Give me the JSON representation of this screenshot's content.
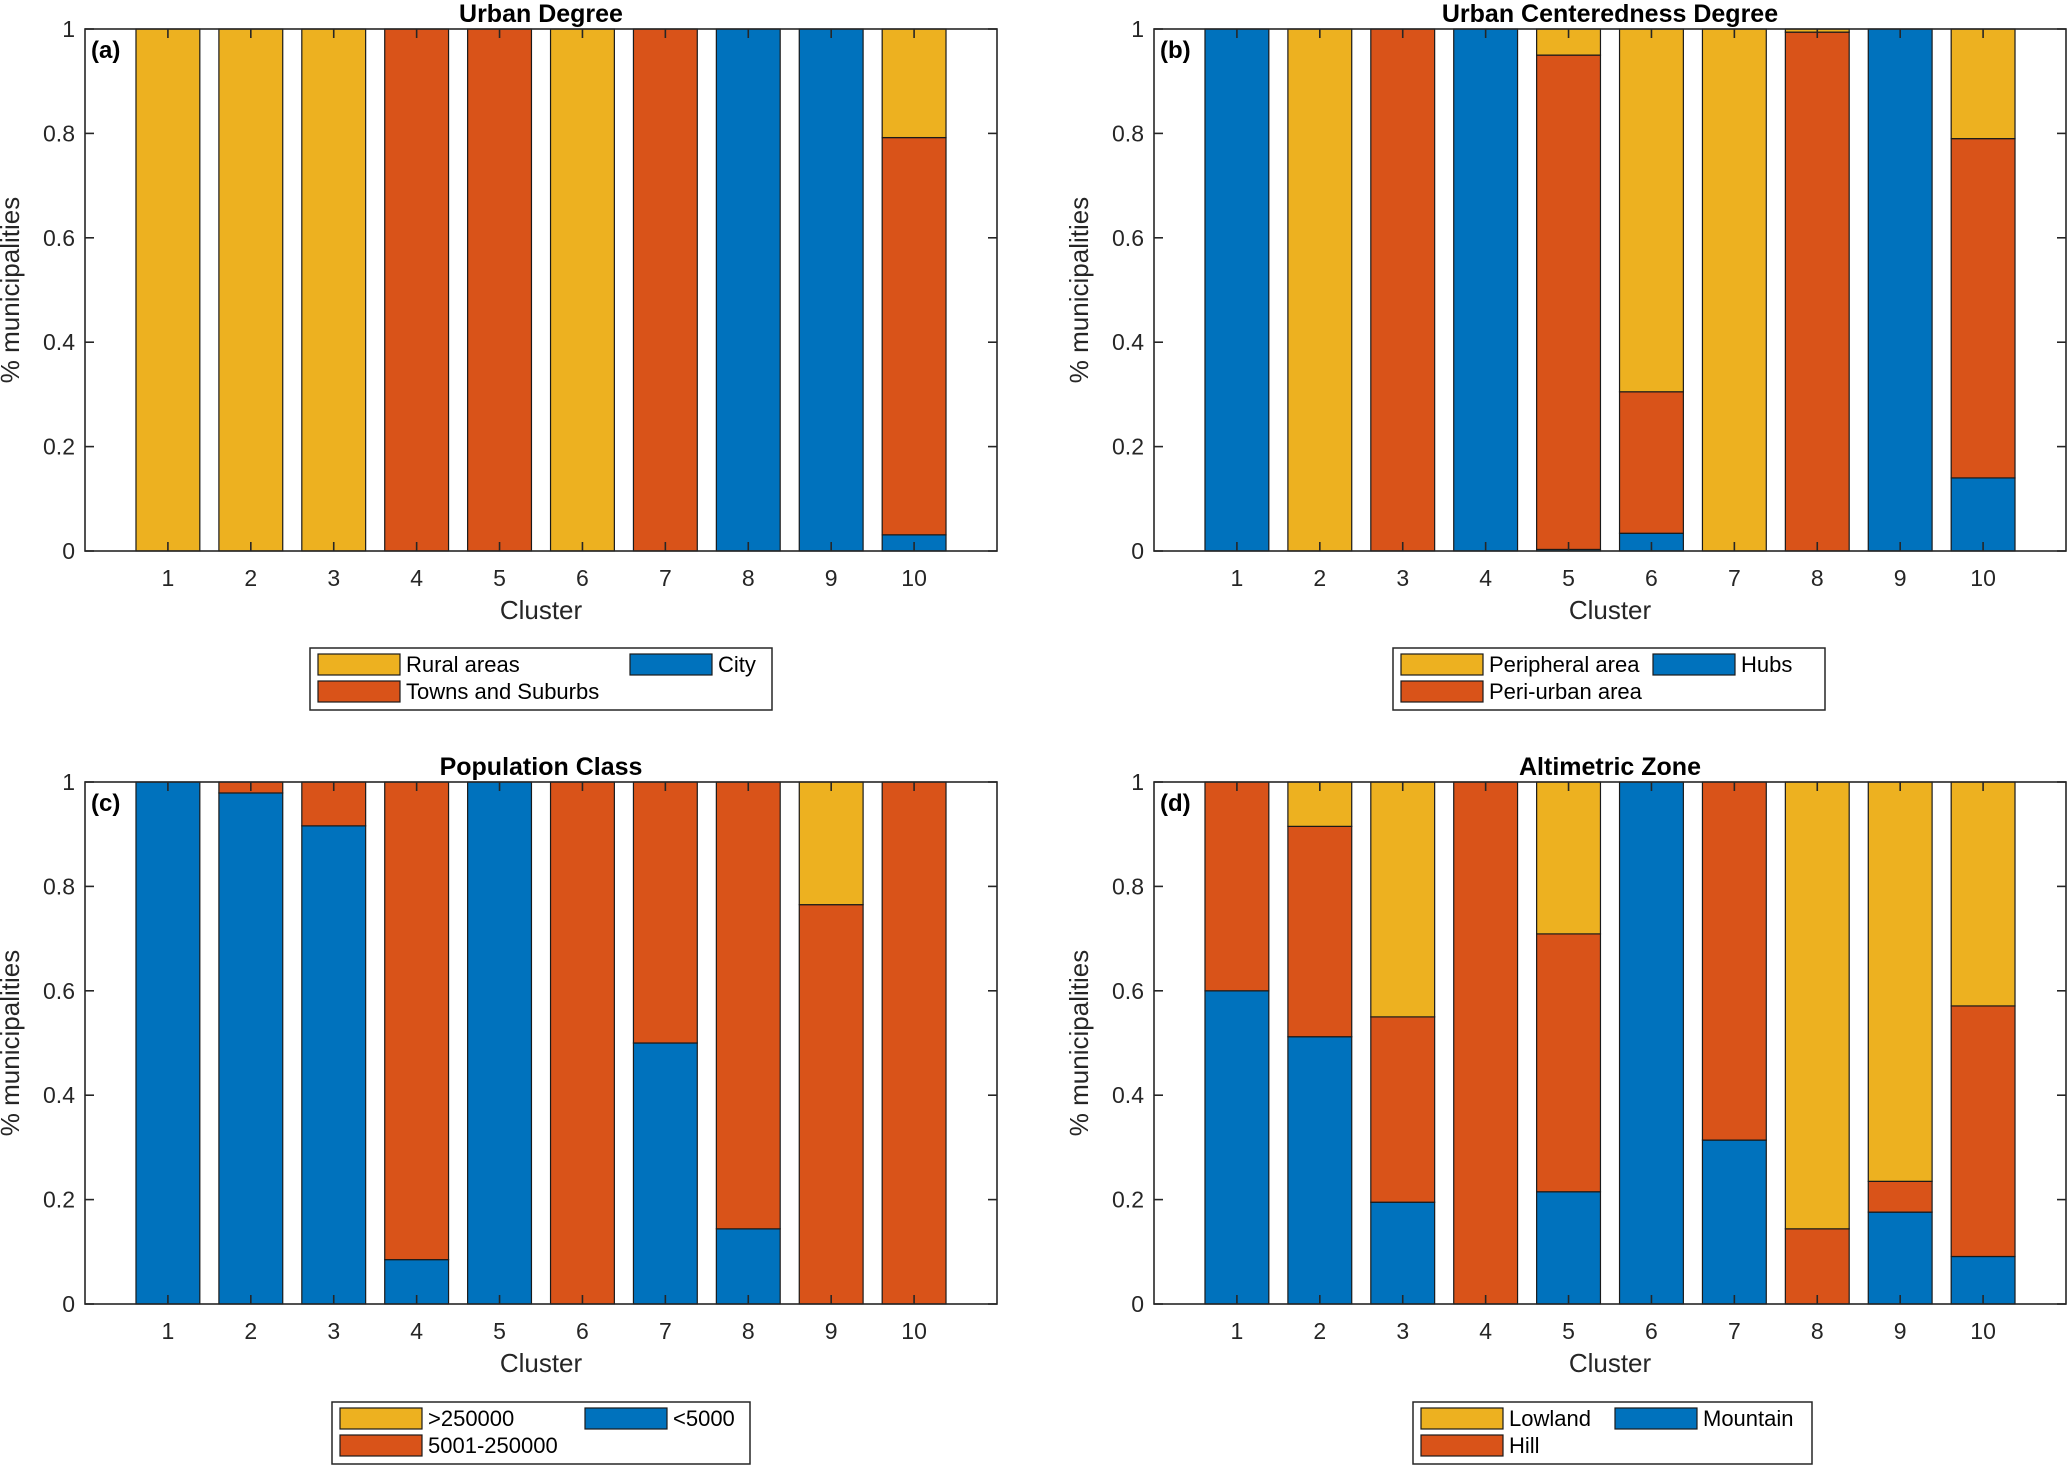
{
  "colors": {
    "yellow": "#EDB120",
    "orange": "#D95319",
    "blue": "#0072BD"
  },
  "chart_data": [
    {
      "id": "a",
      "type": "bar",
      "stacked": true,
      "panel_label": "(a)",
      "title": "Urban Degree",
      "xlabel": "Cluster",
      "ylabel": "% municipalities",
      "categories": [
        "1",
        "2",
        "3",
        "4",
        "5",
        "6",
        "7",
        "8",
        "9",
        "10"
      ],
      "xlim": [
        0,
        11
      ],
      "ylim": [
        0,
        1
      ],
      "yticks": [
        0,
        0.2,
        0.4,
        0.6,
        0.8,
        1
      ],
      "ytick_labels": [
        "0",
        "0.2",
        "0.4",
        "0.6",
        "0.8",
        "1"
      ],
      "stack_order_bottom_to_top": [
        "City",
        "Towns and Suburbs",
        "Rural areas"
      ],
      "series": [
        {
          "name": "City",
          "color": "blue",
          "values": [
            0,
            0,
            0,
            0,
            0,
            0,
            0,
            1,
            1,
            0.031
          ]
        },
        {
          "name": "Towns and Suburbs",
          "color": "orange",
          "values": [
            0,
            0,
            0,
            1,
            1,
            0,
            1,
            0,
            0,
            0.761
          ]
        },
        {
          "name": "Rural areas",
          "color": "yellow",
          "values": [
            1,
            1,
            1,
            0,
            0,
            1,
            0,
            0,
            0,
            0.208
          ]
        }
      ],
      "legend": {
        "placement": "bottom-outside",
        "entries": [
          {
            "label": "Rural areas",
            "color": "yellow"
          },
          {
            "label": "City",
            "color": "blue"
          },
          {
            "label": "Towns and Suburbs",
            "color": "orange"
          }
        ]
      }
    },
    {
      "id": "b",
      "type": "bar",
      "stacked": true,
      "panel_label": "(b)",
      "title": "Urban Centeredness Degree",
      "xlabel": "Cluster",
      "ylabel": "% municipalities",
      "categories": [
        "1",
        "2",
        "3",
        "4",
        "5",
        "6",
        "7",
        "8",
        "9",
        "10"
      ],
      "xlim": [
        0,
        11
      ],
      "ylim": [
        0,
        1
      ],
      "yticks": [
        0,
        0.2,
        0.4,
        0.6,
        0.8,
        1
      ],
      "ytick_labels": [
        "0",
        "0.2",
        "0.4",
        "0.6",
        "0.8",
        "1"
      ],
      "stack_order_bottom_to_top": [
        "Hubs",
        "Peri-urban area",
        "Peripheral area"
      ],
      "series": [
        {
          "name": "Hubs",
          "color": "blue",
          "values": [
            1,
            0,
            0,
            1,
            0.003,
            0.034,
            0,
            0,
            1,
            0.14
          ]
        },
        {
          "name": "Peri-urban area",
          "color": "orange",
          "values": [
            0,
            0,
            1,
            0,
            0.947,
            0.271,
            0,
            0.994,
            0,
            0.65
          ]
        },
        {
          "name": "Peripheral area",
          "color": "yellow",
          "values": [
            0,
            1,
            0,
            0,
            0.05,
            0.695,
            1,
            0.006,
            0,
            0.21
          ]
        }
      ],
      "legend": {
        "placement": "bottom-outside",
        "entries": [
          {
            "label": "Peripheral area",
            "color": "yellow"
          },
          {
            "label": "Hubs",
            "color": "blue"
          },
          {
            "label": "Peri-urban area",
            "color": "orange"
          }
        ]
      }
    },
    {
      "id": "c",
      "type": "bar",
      "stacked": true,
      "panel_label": "(c)",
      "title": "Population Class",
      "xlabel": "Cluster",
      "ylabel": "% municipalities",
      "categories": [
        "1",
        "2",
        "3",
        "4",
        "5",
        "6",
        "7",
        "8",
        "9",
        "10"
      ],
      "xlim": [
        0,
        11
      ],
      "ylim": [
        0,
        1
      ],
      "yticks": [
        0,
        0.2,
        0.4,
        0.6,
        0.8,
        1
      ],
      "ytick_labels": [
        "0",
        "0.2",
        "0.4",
        "0.6",
        "0.8",
        "1"
      ],
      "stack_order_bottom_to_top": [
        "<5000",
        "5001-250000",
        ">250000"
      ],
      "series": [
        {
          "name": "<5000",
          "color": "blue",
          "values": [
            1,
            0.979,
            0.916,
            0.085,
            1,
            0,
            0.5,
            0.144,
            0,
            0
          ]
        },
        {
          "name": "5001-250000",
          "color": "orange",
          "values": [
            0,
            0.021,
            0.084,
            0.915,
            0,
            1,
            0.5,
            0.856,
            0.765,
            1
          ]
        },
        {
          "name": ">250000",
          "color": "yellow",
          "values": [
            0,
            0,
            0,
            0,
            0,
            0,
            0,
            0,
            0.235,
            0
          ]
        }
      ],
      "legend": {
        "placement": "bottom-outside",
        "entries": [
          {
            "label": ">250000",
            "color": "yellow"
          },
          {
            "label": "<5000",
            "color": "blue"
          },
          {
            "label": "5001-250000",
            "color": "orange"
          }
        ]
      }
    },
    {
      "id": "d",
      "type": "bar",
      "stacked": true,
      "panel_label": "(d)",
      "title": "Altimetric Zone",
      "xlabel": "Cluster",
      "ylabel": "% municipalities",
      "categories": [
        "1",
        "2",
        "3",
        "4",
        "5",
        "6",
        "7",
        "8",
        "9",
        "10"
      ],
      "xlim": [
        0,
        11
      ],
      "ylim": [
        0,
        1
      ],
      "yticks": [
        0,
        0.2,
        0.4,
        0.6,
        0.8,
        1
      ],
      "ytick_labels": [
        "0",
        "0.2",
        "0.4",
        "0.6",
        "0.8",
        "1"
      ],
      "stack_order_bottom_to_top": [
        "Mountain",
        "Hill",
        "Lowland"
      ],
      "series": [
        {
          "name": "Mountain",
          "color": "blue",
          "values": [
            0.6,
            0.512,
            0.195,
            0,
            0.215,
            1,
            0.314,
            0,
            0.176,
            0.091
          ]
        },
        {
          "name": "Hill",
          "color": "orange",
          "values": [
            0.4,
            0.403,
            0.355,
            1,
            0.494,
            0,
            0.686,
            0.144,
            0.059,
            0.48
          ]
        },
        {
          "name": "Lowland",
          "color": "yellow",
          "values": [
            0,
            0.085,
            0.45,
            0,
            0.291,
            0,
            0,
            0.856,
            0.765,
            0.429
          ]
        }
      ],
      "legend": {
        "placement": "bottom-outside",
        "entries": [
          {
            "label": "Lowland",
            "color": "yellow"
          },
          {
            "label": "Mountain",
            "color": "blue"
          },
          {
            "label": "Hill",
            "color": "orange"
          }
        ]
      }
    }
  ]
}
